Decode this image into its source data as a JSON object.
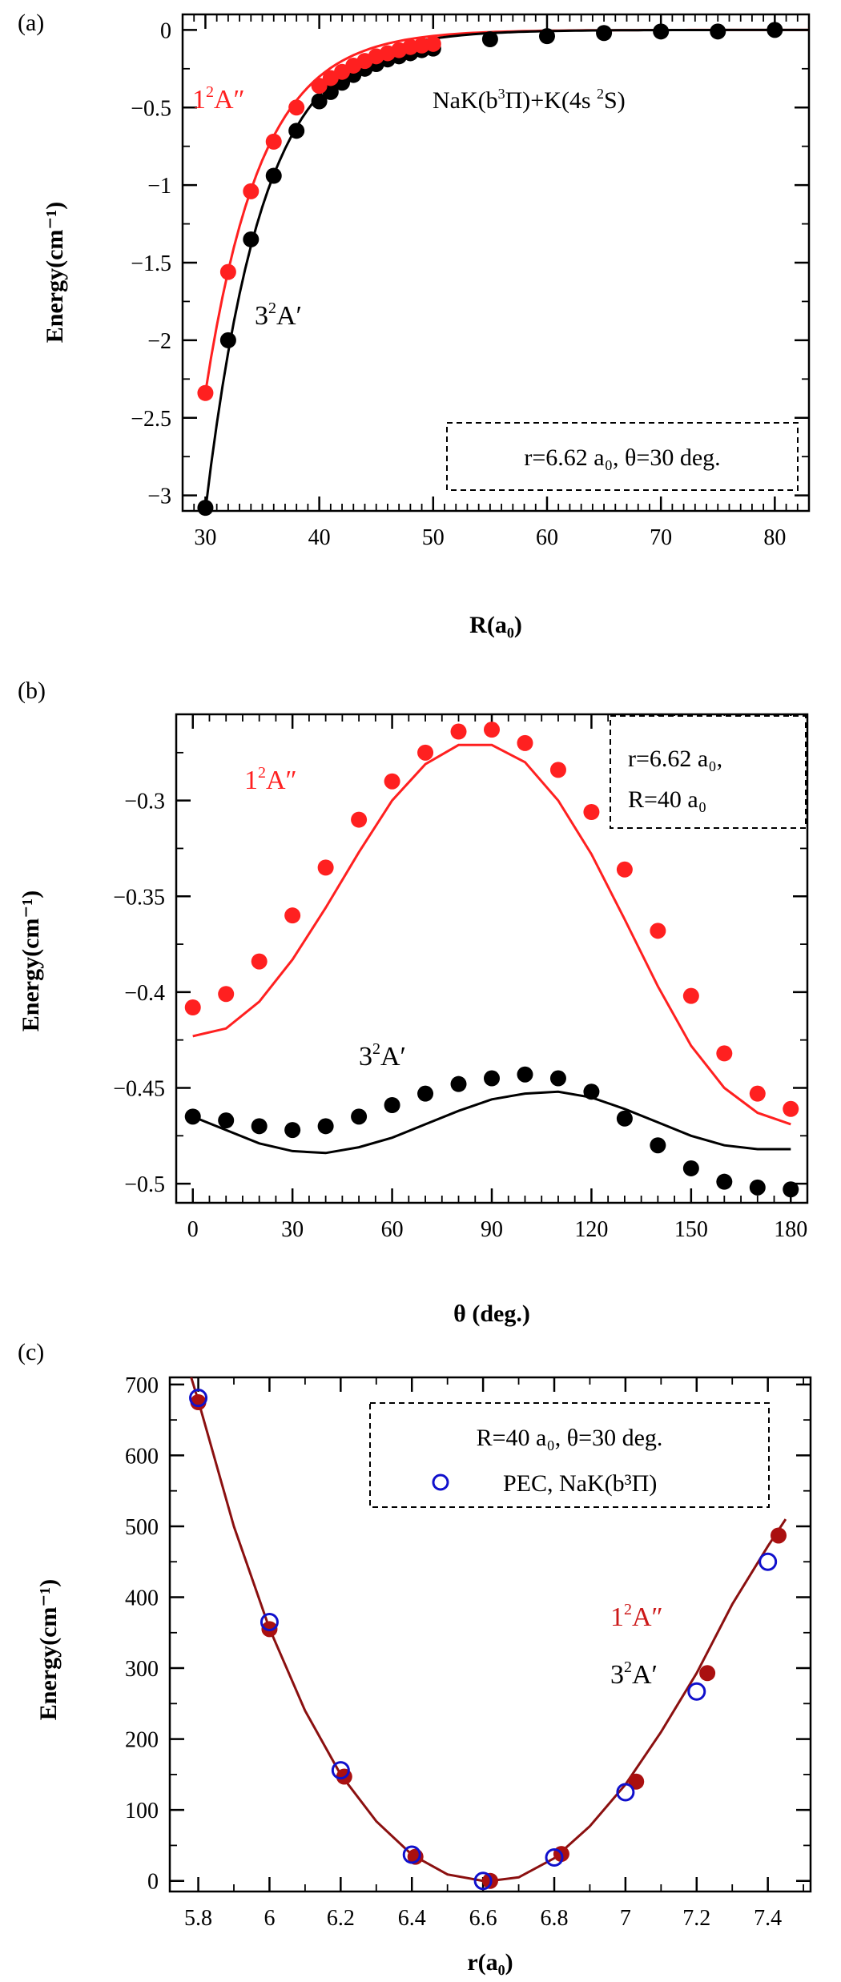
{
  "chart_data": [
    {
      "panel_label": "(a)",
      "type": "scatter",
      "xlabel": "R(a₀)",
      "ylabel": "Energy(cm⁻¹)",
      "xlim": [
        28,
        83
      ],
      "ylim": [
        -3.1,
        0.1
      ],
      "xticks": [
        30,
        40,
        50,
        60,
        70,
        80
      ],
      "yticks": [
        -3,
        -2.5,
        -2,
        -1.5,
        -1,
        -0.5,
        0
      ],
      "xtick_labels": [
        "30",
        "40",
        "50",
        "60",
        "70",
        "80"
      ],
      "ytick_labels": [
        "−3",
        "−2.5",
        "−2",
        "−1.5",
        "−1",
        "−0.5",
        "0"
      ],
      "series": [
        {
          "name": "1²A″",
          "color": "#ff2020",
          "points": {
            "x": [
              30,
              32,
              34,
              36,
              38,
              40,
              41,
              42,
              43,
              44,
              45,
              46,
              47,
              48,
              49,
              50
            ],
            "y": [
              -2.34,
              -1.56,
              -1.04,
              -0.72,
              -0.5,
              -0.36,
              -0.31,
              -0.27,
              -0.23,
              -0.2,
              -0.17,
              -0.15,
              -0.13,
              -0.11,
              -0.1,
              -0.09
            ]
          },
          "curve": {
            "A": -2.34,
            "x0": 30,
            "k": 0.205
          }
        },
        {
          "name": "3²A′",
          "color": "#000000",
          "points": {
            "x": [
              30,
              32,
              34,
              36,
              38,
              40,
              41,
              42,
              43,
              44,
              45,
              46,
              47,
              48,
              49,
              50,
              55,
              60,
              65,
              70,
              75,
              80
            ],
            "y": [
              -3.08,
              -2.0,
              -1.35,
              -0.94,
              -0.65,
              -0.46,
              -0.4,
              -0.34,
              -0.29,
              -0.25,
              -0.22,
              -0.19,
              -0.17,
              -0.15,
              -0.13,
              -0.12,
              -0.06,
              -0.04,
              -0.02,
              -0.01,
              -0.01,
              0.0
            ]
          },
          "curve": {
            "A": -3.1,
            "x0": 30,
            "k": 0.2
          }
        }
      ],
      "annotations": {
        "red_label_main": "1",
        "red_label_sup": "2",
        "red_label_tail": "A″",
        "black_label_main": "3",
        "black_label_sup": "2",
        "black_label_tail": "A′",
        "asymptote_pre": "NaK(b",
        "asymptote_sup1": "3",
        "asymptote_mid": "Π)+K(4s ",
        "asymptote_sup2": "2",
        "asymptote_post": "S)",
        "box_text": "r=6.62 a₀, θ=30 deg."
      }
    },
    {
      "panel_label": "(b)",
      "type": "scatter",
      "xlabel": "θ (deg.)",
      "ylabel": "Energy(cm⁻¹)",
      "xlim": [
        -5,
        185
      ],
      "ylim": [
        -0.51,
        -0.255
      ],
      "xticks": [
        0,
        30,
        60,
        90,
        120,
        150,
        180
      ],
      "yticks": [
        -0.5,
        -0.45,
        -0.4,
        -0.35,
        -0.3
      ],
      "xtick_labels": [
        "0",
        "30",
        "60",
        "90",
        "120",
        "150",
        "180"
      ],
      "ytick_labels": [
        "−0.5",
        "−0.45",
        "−0.4",
        "−0.35",
        "−0.3"
      ],
      "series": [
        {
          "name": "1²A″",
          "color": "#ff2020",
          "points": {
            "x": [
              0,
              10,
              20,
              30,
              40,
              50,
              60,
              70,
              80,
              90,
              100,
              110,
              120,
              130,
              140,
              150,
              160,
              170,
              180
            ],
            "y": [
              -0.408,
              -0.401,
              -0.384,
              -0.36,
              -0.335,
              -0.31,
              -0.29,
              -0.275,
              -0.264,
              -0.263,
              -0.27,
              -0.284,
              -0.306,
              -0.336,
              -0.368,
              -0.402,
              -0.432,
              -0.453,
              -0.461
            ]
          },
          "curve": {
            "x": [
              0,
              10,
              20,
              30,
              40,
              50,
              60,
              70,
              80,
              90,
              100,
              110,
              120,
              130,
              140,
              150,
              160,
              170,
              180
            ],
            "y": [
              -0.423,
              -0.419,
              -0.405,
              -0.383,
              -0.356,
              -0.327,
              -0.3,
              -0.281,
              -0.271,
              -0.271,
              -0.28,
              -0.3,
              -0.328,
              -0.362,
              -0.397,
              -0.428,
              -0.45,
              -0.463,
              -0.469
            ]
          }
        },
        {
          "name": "3²A′",
          "color": "#000000",
          "points": {
            "x": [
              0,
              10,
              20,
              30,
              40,
              50,
              60,
              70,
              80,
              90,
              100,
              110,
              120,
              130,
              140,
              150,
              160,
              170,
              180
            ],
            "y": [
              -0.465,
              -0.467,
              -0.47,
              -0.472,
              -0.47,
              -0.465,
              -0.459,
              -0.453,
              -0.448,
              -0.445,
              -0.443,
              -0.445,
              -0.452,
              -0.466,
              -0.48,
              -0.492,
              -0.499,
              -0.502,
              -0.503
            ]
          },
          "curve": {
            "x": [
              0,
              10,
              20,
              30,
              40,
              50,
              60,
              70,
              80,
              90,
              100,
              110,
              120,
              130,
              140,
              150,
              160,
              170,
              180
            ],
            "y": [
              -0.465,
              -0.472,
              -0.479,
              -0.483,
              -0.484,
              -0.481,
              -0.476,
              -0.469,
              -0.462,
              -0.456,
              -0.453,
              -0.452,
              -0.455,
              -0.461,
              -0.468,
              -0.475,
              -0.48,
              -0.482,
              -0.482
            ]
          }
        }
      ],
      "annotations": {
        "red_label_main": "1",
        "red_label_sup": "2",
        "red_label_tail": "A″",
        "black_label_main": "3",
        "black_label_sup": "2",
        "black_label_tail": "A′",
        "box_line1": "r=6.62 a₀,",
        "box_line2": "R=40 a₀"
      }
    },
    {
      "panel_label": "(c)",
      "type": "scatter",
      "xlabel": "r(a₀)",
      "ylabel": "Energy(cm⁻¹)",
      "xlim": [
        5.72,
        7.52
      ],
      "ylim": [
        -15,
        710
      ],
      "xticks": [
        5.8,
        6,
        6.2,
        6.4,
        6.6,
        6.8,
        7,
        7.2,
        7.4
      ],
      "yticks": [
        0,
        100,
        200,
        300,
        400,
        500,
        600,
        700
      ],
      "xtick_labels": [
        "5.8",
        "6",
        "6.2",
        "6.4",
        "6.6",
        "6.8",
        "7",
        "7.2",
        "7.4"
      ],
      "ytick_labels": [
        "0",
        "100",
        "200",
        "300",
        "400",
        "500",
        "600",
        "700"
      ],
      "series": [
        {
          "name": "1²A″ / 3²A′",
          "color": "#aa1010",
          "points": {
            "x": [
              5.8,
              6.0,
              6.21,
              6.41,
              6.62,
              6.82,
              7.03,
              7.23,
              7.43
            ],
            "y": [
              675,
              355,
              147,
              34,
              0,
              38,
              140,
              293,
              487
            ]
          }
        },
        {
          "name": "PEC, NaK(b³Π)",
          "color": "#1010cc",
          "points": {
            "x": [
              5.8,
              6.0,
              6.2,
              6.4,
              6.6,
              6.8,
              7.0,
              7.2,
              7.4
            ],
            "y": [
              681,
              365,
              156,
              37,
              0,
              33,
              125,
              267,
              450
            ]
          }
        }
      ],
      "curve": {
        "x": [
          5.78,
          5.8,
          5.9,
          6.0,
          6.1,
          6.2,
          6.3,
          6.4,
          6.5,
          6.6,
          6.62,
          6.7,
          6.8,
          6.9,
          7.0,
          7.1,
          7.2,
          7.3,
          7.4,
          7.45
        ],
        "y": [
          710,
          677,
          500,
          356,
          240,
          150,
          84,
          37,
          9,
          0,
          0,
          5,
          32,
          77,
          136,
          210,
          293,
          390,
          472,
          510
        ]
      },
      "annotations": {
        "red_label_main": "1",
        "red_label_sup": "2",
        "red_label_tail": "A″",
        "black_label_main": "3",
        "black_label_sup": "2",
        "black_label_tail": "A′",
        "legend_title": "R=40 a₀, θ=30 deg.",
        "legend_entry": "PEC, NaK(b³Π)"
      }
    }
  ]
}
